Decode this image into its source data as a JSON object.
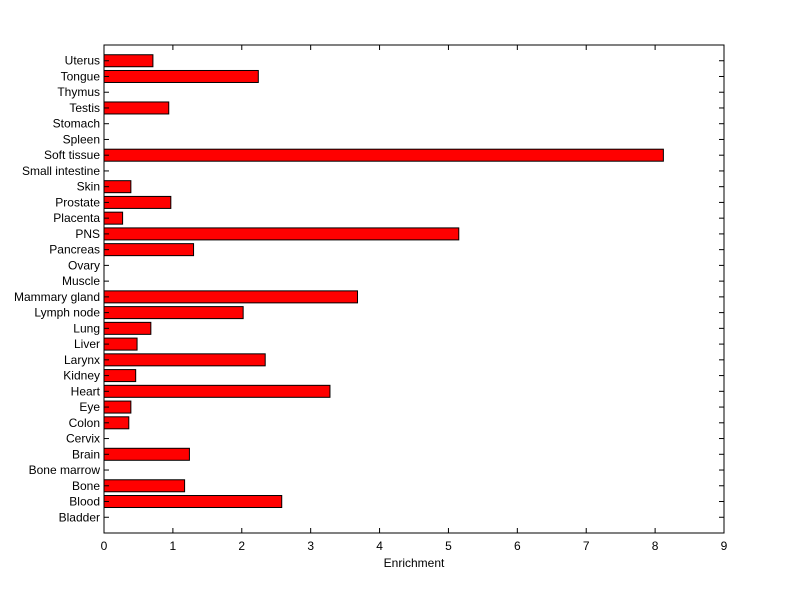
{
  "chart_data": {
    "type": "bar",
    "orientation": "horizontal",
    "title": "",
    "xlabel": "Enrichment",
    "ylabel": "",
    "xlim": [
      0,
      9
    ],
    "xticks": [
      0,
      1,
      2,
      3,
      4,
      5,
      6,
      7,
      8,
      9
    ],
    "grid": false,
    "legend": "none",
    "bar_color": "#ff0000",
    "bar_edge_color": "#000000",
    "categories": [
      "Bladder",
      "Blood",
      "Bone",
      "Bone marrow",
      "Brain",
      "Cervix",
      "Colon",
      "Eye",
      "Heart",
      "Kidney",
      "Larynx",
      "Liver",
      "Lung",
      "Lymph node",
      "Mammary gland",
      "Muscle",
      "Ovary",
      "Pancreas",
      "PNS",
      "Placenta",
      "Prostate",
      "Skin",
      "Small intestine",
      "Soft tissue",
      "Spleen",
      "Stomach",
      "Testis",
      "Thymus",
      "Tongue",
      "Uterus"
    ],
    "values": [
      0,
      2.58,
      1.17,
      0,
      1.24,
      0,
      0.36,
      0.39,
      3.28,
      0.46,
      2.34,
      0.48,
      0.68,
      2.02,
      3.68,
      0,
      0,
      1.3,
      5.15,
      0.27,
      0.97,
      0.39,
      0,
      8.12,
      0,
      0,
      0.94,
      0,
      2.24,
      0.71
    ]
  }
}
